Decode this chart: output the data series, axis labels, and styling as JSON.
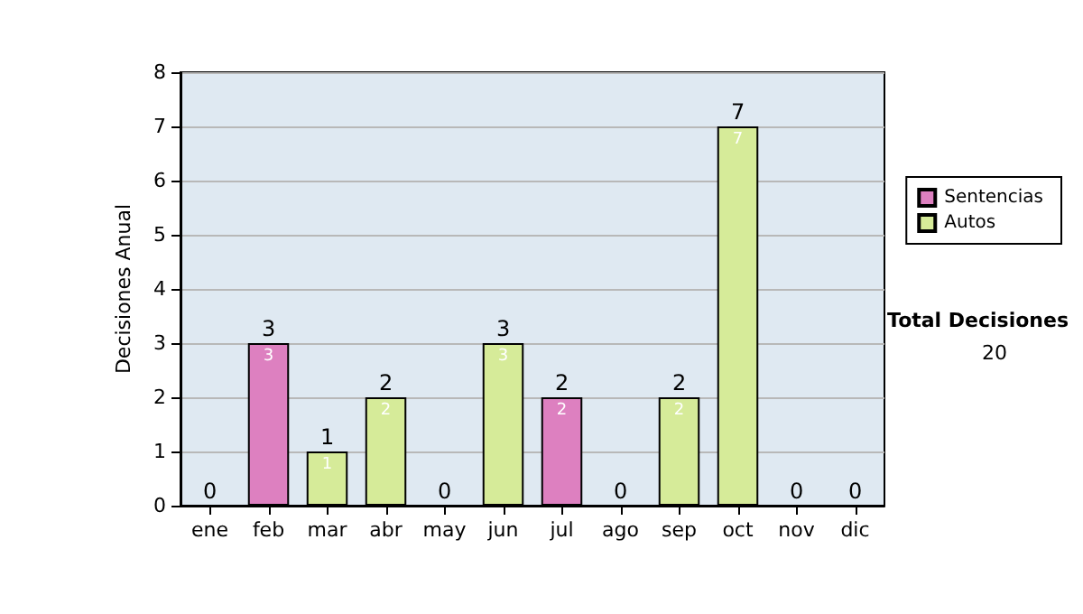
{
  "chart_data": {
    "type": "bar",
    "stacked": true,
    "categories": [
      "ene",
      "feb",
      "mar",
      "abr",
      "may",
      "jun",
      "jul",
      "ago",
      "sep",
      "oct",
      "nov",
      "dic"
    ],
    "ylabel": "Decisiones Anual",
    "series": [
      {
        "name": "Sentencias",
        "color": "#dd80c0",
        "values": [
          0,
          3,
          0,
          0,
          0,
          0,
          2,
          0,
          0,
          0,
          0,
          0
        ],
        "value_labels": [
          null,
          "3",
          null,
          null,
          null,
          null,
          "2",
          null,
          null,
          null,
          null,
          null
        ]
      },
      {
        "name": "Autos",
        "color": "#d6eb99",
        "values": [
          0,
          0,
          1,
          2,
          0,
          3,
          0,
          0,
          2,
          7,
          0,
          0
        ],
        "value_labels": [
          null,
          null,
          "1",
          "2",
          null,
          "3",
          null,
          null,
          "2",
          "7",
          null,
          null
        ]
      }
    ],
    "totals": [
      "0",
      "3",
      "1",
      "2",
      "0",
      "3",
      "2",
      "0",
      "2",
      "7",
      "0",
      "0"
    ],
    "ylim": [
      0,
      8
    ],
    "yticks": [
      0,
      1,
      2,
      3,
      4,
      5,
      6,
      7,
      8
    ],
    "grid": "y",
    "legend": "right",
    "annotations": [
      "Total Decisiones",
      "20"
    ]
  }
}
